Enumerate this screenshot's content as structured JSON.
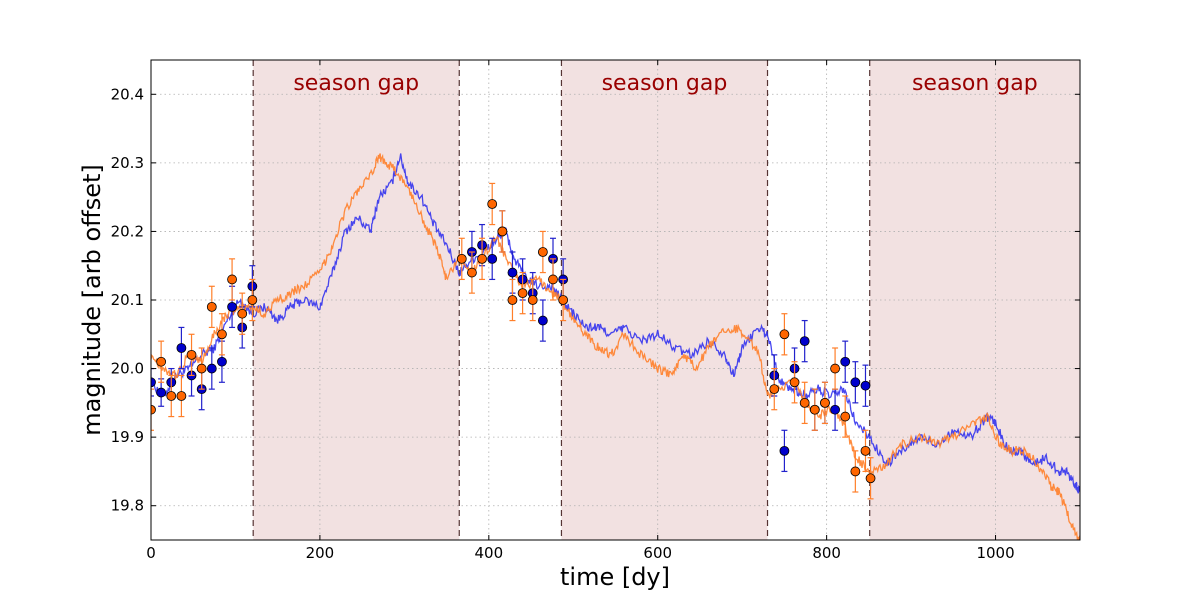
{
  "chart_data": {
    "type": "line",
    "title": "",
    "xlabel": "time [dy]",
    "ylabel": "magnitude [arb offset]",
    "xlim": [
      0,
      1100
    ],
    "ylim": [
      19.75,
      20.45
    ],
    "x_ticks": [
      0,
      200,
      400,
      600,
      800,
      1000
    ],
    "y_ticks": [
      19.8,
      19.9,
      20.0,
      20.1,
      20.2,
      20.3,
      20.4
    ],
    "grid": true,
    "season_gap_label": "season gap",
    "season_gaps": [
      [
        121,
        365
      ],
      [
        486,
        730
      ],
      [
        851,
        1100
      ]
    ],
    "colors": {
      "blue": "#3333ee",
      "orange": "#ff7f2a",
      "blue_point": "#0000cc",
      "orange_point": "#ff6600",
      "gap_fill": "#f2e1e1",
      "gap_text": "#990000",
      "gap_line": "#553333"
    },
    "series": [
      {
        "name": "blue light curve",
        "color": "#3333ee",
        "x": [
          0,
          15,
          30,
          45,
          60,
          75,
          90,
          105,
          120,
          135,
          150,
          165,
          180,
          200,
          215,
          230,
          245,
          260,
          270,
          285,
          295,
          305,
          320,
          335,
          350,
          365,
          380,
          395,
          410,
          420,
          430,
          445,
          460,
          475,
          486,
          500,
          515,
          530,
          545,
          560,
          580,
          600,
          620,
          640,
          660,
          680,
          690,
          700,
          720,
          730,
          745,
          760,
          775,
          790,
          805,
          820,
          835,
          851,
          870,
          890,
          910,
          930,
          950,
          970,
          990,
          1000,
          1015,
          1030,
          1045,
          1060,
          1075,
          1085,
          1095,
          1100
        ],
        "values": [
          19.98,
          19.96,
          19.99,
          20.0,
          20.02,
          20.03,
          20.07,
          20.1,
          20.08,
          20.09,
          20.07,
          20.09,
          20.1,
          20.09,
          20.14,
          20.2,
          20.22,
          20.2,
          20.25,
          20.27,
          20.31,
          20.27,
          20.25,
          20.21,
          20.18,
          20.14,
          20.16,
          20.17,
          20.19,
          20.2,
          20.16,
          20.13,
          20.12,
          20.12,
          20.1,
          20.08,
          20.06,
          20.06,
          20.05,
          20.06,
          20.04,
          20.05,
          20.03,
          20.02,
          20.04,
          20.02,
          19.99,
          20.03,
          20.06,
          20.05,
          19.98,
          19.97,
          19.96,
          19.97,
          19.96,
          19.97,
          19.92,
          19.9,
          19.86,
          19.88,
          19.9,
          19.89,
          19.91,
          19.9,
          19.93,
          19.92,
          19.88,
          19.88,
          19.86,
          19.87,
          19.85,
          19.85,
          19.83,
          19.82
        ]
      },
      {
        "name": "orange light curve",
        "color": "#ff7f2a",
        "x": [
          0,
          15,
          30,
          45,
          60,
          75,
          90,
          105,
          120,
          135,
          150,
          165,
          180,
          200,
          215,
          230,
          245,
          260,
          270,
          280,
          295,
          310,
          325,
          340,
          350,
          365,
          380,
          395,
          410,
          425,
          440,
          460,
          475,
          486,
          500,
          515,
          530,
          545,
          560,
          580,
          600,
          615,
          630,
          645,
          660,
          675,
          690,
          705,
          720,
          730,
          740,
          760,
          775,
          790,
          805,
          820,
          835,
          851,
          870,
          890,
          910,
          930,
          950,
          975,
          990,
          1005,
          1020,
          1035,
          1050,
          1065,
          1075,
          1085,
          1095,
          1100
        ],
        "values": [
          20.02,
          20.0,
          19.99,
          20.02,
          20.01,
          20.05,
          20.08,
          20.09,
          20.09,
          20.08,
          20.1,
          20.11,
          20.12,
          20.14,
          20.18,
          20.23,
          20.26,
          20.28,
          20.31,
          20.3,
          20.28,
          20.25,
          20.21,
          20.17,
          20.13,
          20.16,
          20.14,
          20.17,
          20.19,
          20.15,
          20.12,
          20.13,
          20.11,
          20.1,
          20.07,
          20.05,
          20.03,
          20.02,
          20.05,
          20.02,
          20.0,
          19.99,
          20.02,
          20.0,
          20.03,
          20.05,
          20.06,
          20.05,
          20.02,
          19.96,
          19.97,
          19.98,
          19.95,
          19.93,
          19.94,
          19.92,
          19.87,
          19.85,
          19.86,
          19.89,
          19.9,
          19.89,
          19.9,
          19.92,
          19.93,
          19.89,
          19.88,
          19.88,
          19.86,
          19.83,
          19.82,
          19.79,
          19.76,
          19.75
        ]
      }
    ],
    "points": [
      {
        "name": "blue observations",
        "color": "#0000cc",
        "x": [
          0,
          12,
          24,
          36,
          48,
          60,
          72,
          84,
          96,
          108,
          120,
          380,
          392,
          404,
          416,
          428,
          440,
          452,
          464,
          476,
          488,
          738,
          750,
          762,
          774,
          786,
          798,
          810,
          822,
          834,
          846
        ],
        "y": [
          19.98,
          19.965,
          19.98,
          20.03,
          19.99,
          19.97,
          20.0,
          20.01,
          20.09,
          20.06,
          20.12,
          20.17,
          20.18,
          20.16,
          20.2,
          20.14,
          20.13,
          20.11,
          20.07,
          20.16,
          20.13,
          19.99,
          19.88,
          20.0,
          20.04,
          19.94,
          19.95,
          19.94,
          20.01,
          19.98,
          19.975
        ],
        "err": [
          0.02,
          0.02,
          0.02,
          0.03,
          0.03,
          0.03,
          0.03,
          0.03,
          0.03,
          0.03,
          0.03,
          0.03,
          0.03,
          0.03,
          0.03,
          0.03,
          0.03,
          0.03,
          0.03,
          0.03,
          0.03,
          0.03,
          0.03,
          0.03,
          0.03,
          0.03,
          0.03,
          0.03,
          0.03,
          0.03,
          0.03
        ]
      },
      {
        "name": "orange observations",
        "color": "#ff6600",
        "x": [
          0,
          12,
          24,
          36,
          48,
          60,
          72,
          84,
          96,
          108,
          120,
          368,
          380,
          392,
          404,
          416,
          428,
          440,
          452,
          464,
          476,
          488,
          738,
          750,
          762,
          774,
          786,
          798,
          810,
          822,
          834,
          846,
          852
        ],
        "y": [
          19.94,
          20.01,
          19.96,
          19.96,
          20.02,
          20.0,
          20.09,
          20.05,
          20.13,
          20.08,
          20.1,
          20.16,
          20.14,
          20.16,
          20.24,
          20.2,
          20.1,
          20.11,
          20.1,
          20.17,
          20.13,
          20.1,
          19.97,
          20.05,
          19.98,
          19.95,
          19.94,
          19.95,
          20.0,
          19.93,
          19.85,
          19.88,
          19.84
        ],
        "err": [
          0.03,
          0.03,
          0.03,
          0.03,
          0.03,
          0.03,
          0.03,
          0.03,
          0.03,
          0.03,
          0.03,
          0.03,
          0.03,
          0.03,
          0.03,
          0.03,
          0.03,
          0.03,
          0.03,
          0.03,
          0.03,
          0.03,
          0.03,
          0.03,
          0.03,
          0.03,
          0.03,
          0.03,
          0.03,
          0.03,
          0.03,
          0.03,
          0.03
        ]
      }
    ]
  }
}
